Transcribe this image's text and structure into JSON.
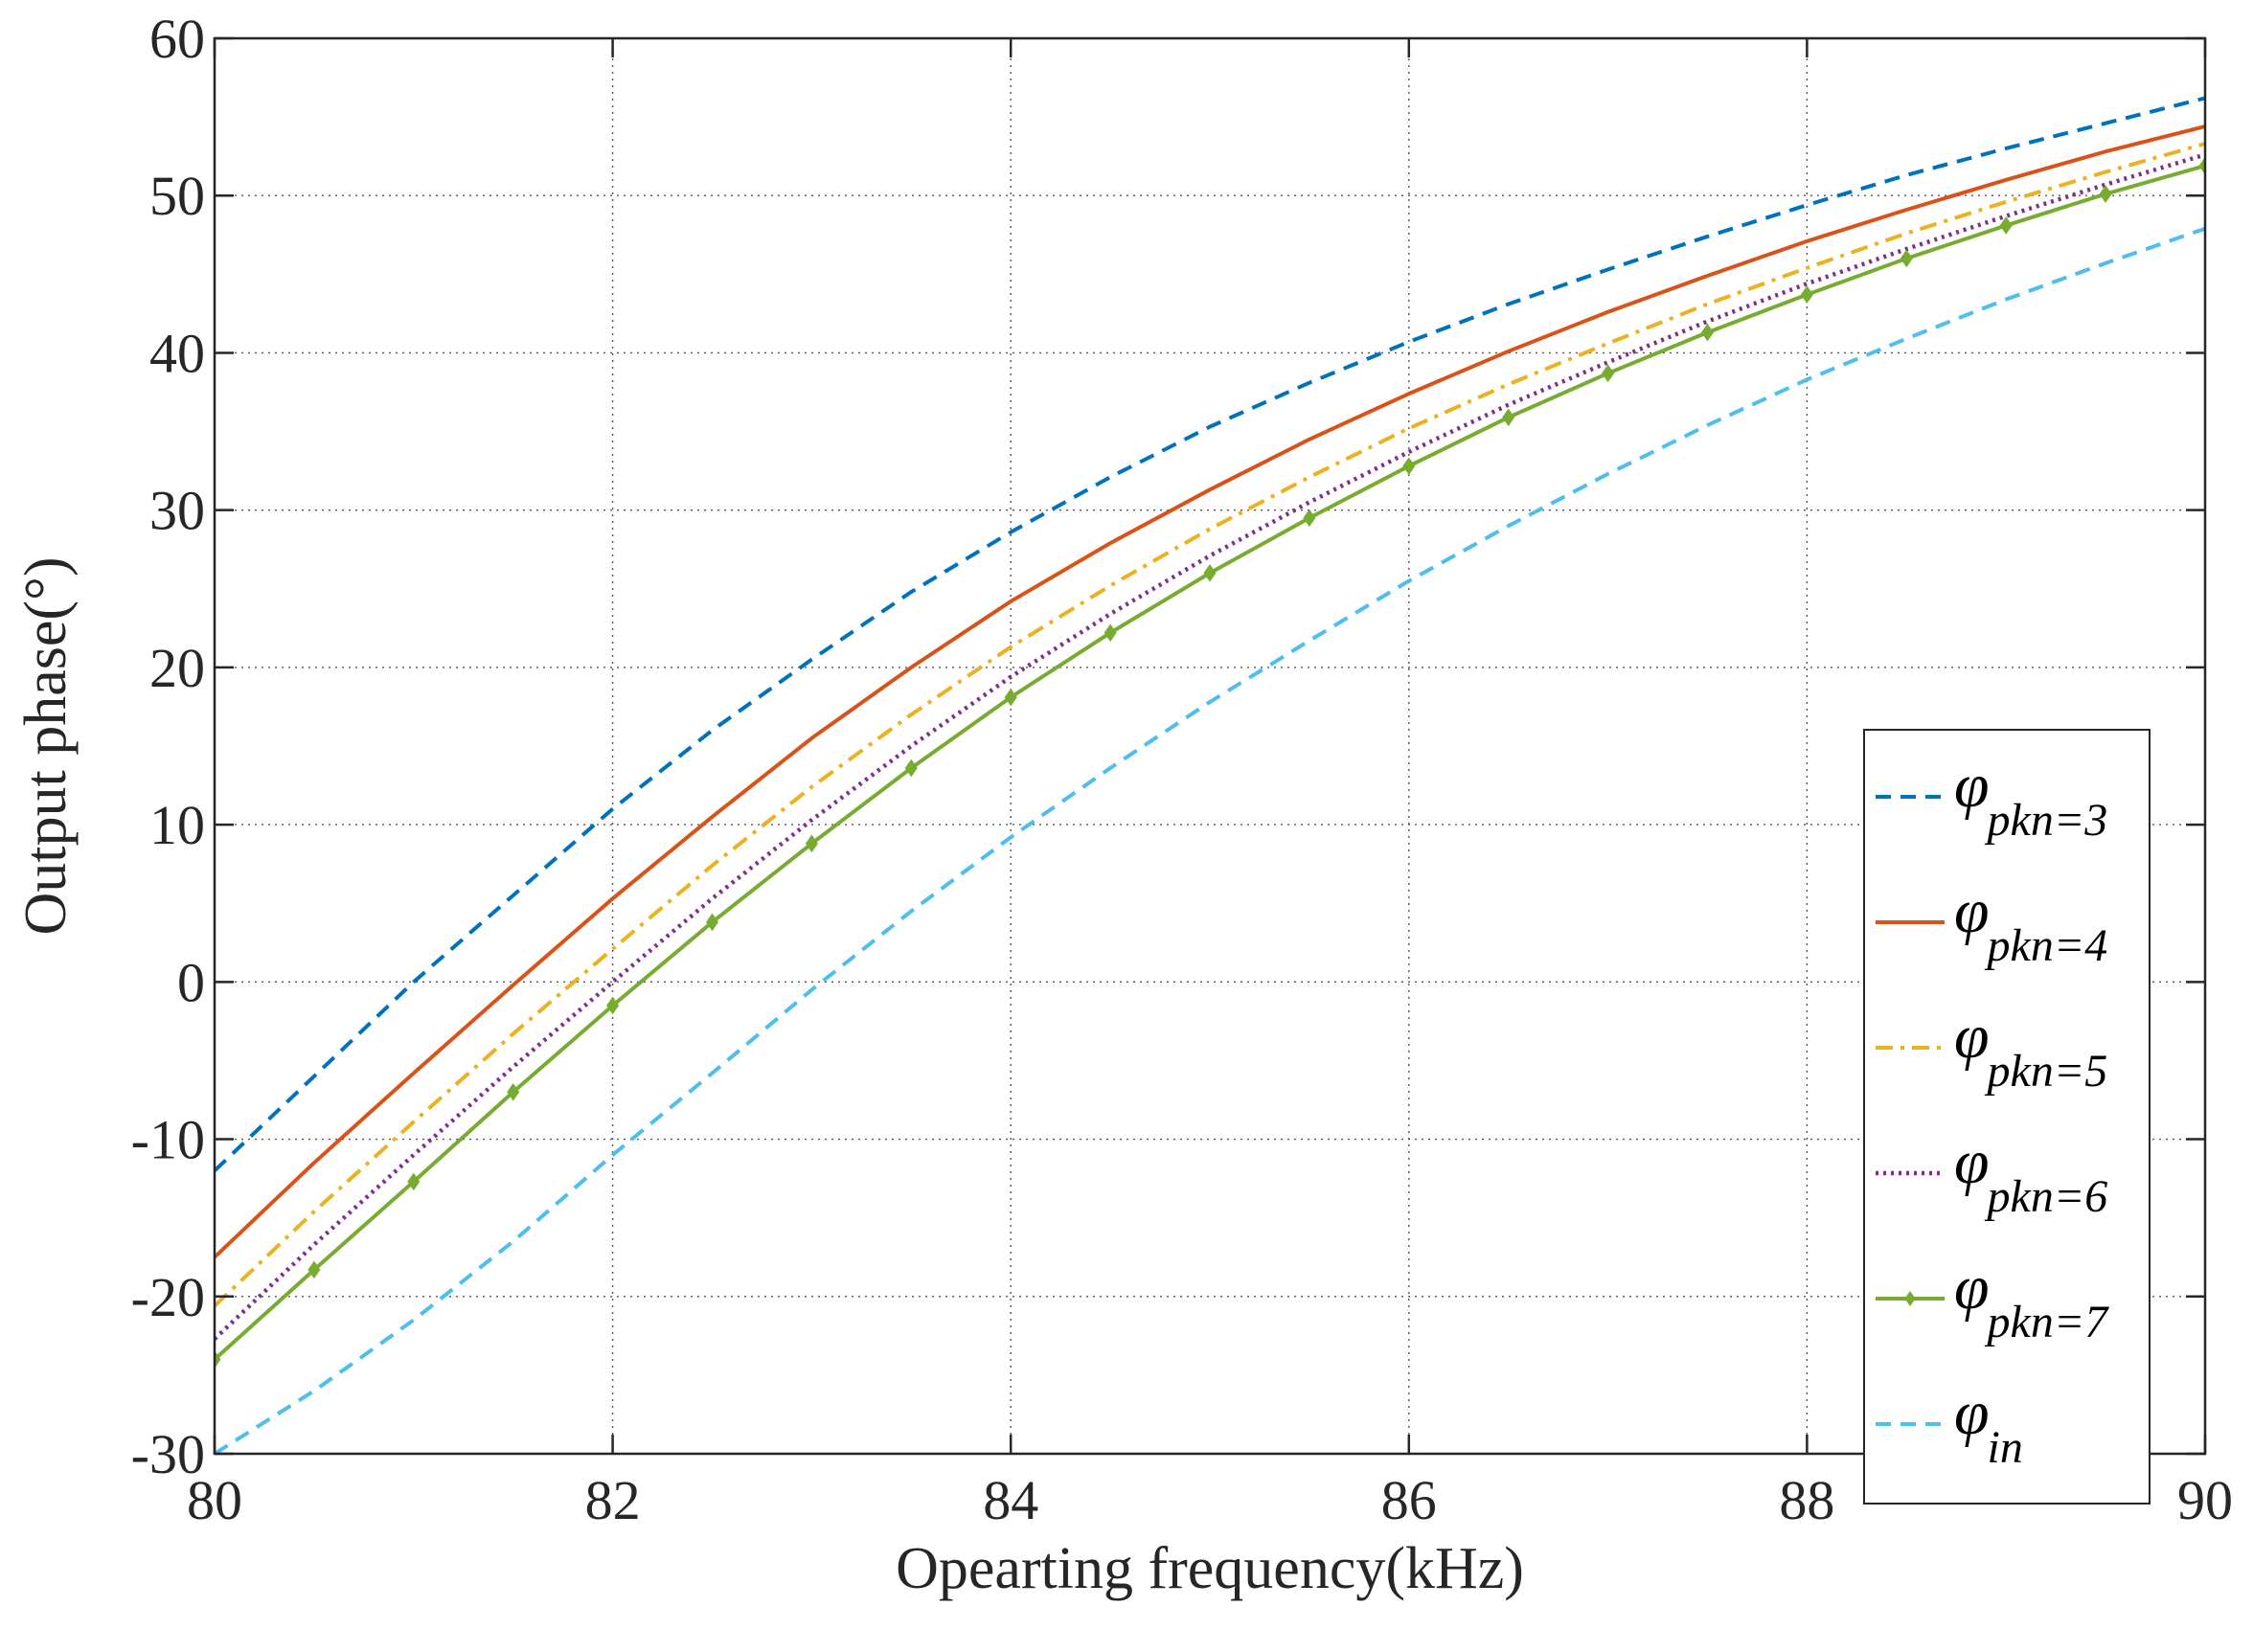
{
  "chart_data": {
    "type": "line",
    "title": "",
    "xlabel": "Opearting frequency(kHz)",
    "ylabel": "Output phase(°)",
    "xlim": [
      80,
      90
    ],
    "ylim": [
      -30,
      60
    ],
    "xticks": [
      80,
      82,
      84,
      86,
      88,
      90
    ],
    "yticks": [
      -30,
      -20,
      -10,
      0,
      10,
      20,
      30,
      40,
      50,
      60
    ],
    "xtick_labels": [
      "80",
      "82",
      "84",
      "86",
      "88",
      "90"
    ],
    "ytick_labels": [
      "-30",
      "-20",
      "-10",
      "0",
      "10",
      "20",
      "30",
      "40",
      "50",
      "60"
    ],
    "grid": true,
    "legend_position": "bottom-right",
    "x": [
      80,
      80.5,
      81,
      81.5,
      82,
      82.5,
      83,
      83.5,
      84,
      84.5,
      85,
      85.5,
      86,
      86.5,
      87,
      87.5,
      88,
      88.5,
      89,
      89.5,
      90
    ],
    "series": [
      {
        "name": "φpkn=3",
        "symbol": "φ",
        "subscript": "pkn=3",
        "color": "#0072BD",
        "style": "dashed",
        "marker": "none",
        "values": [
          -12,
          -6,
          0,
          5.5,
          11,
          16,
          20.5,
          24.8,
          28.6,
          32.1,
          35.3,
          38.1,
          40.7,
          43.1,
          45.3,
          47.4,
          49.4,
          51.3,
          53,
          54.6,
          56.2
        ]
      },
      {
        "name": "φpkn=4",
        "symbol": "φ",
        "subscript": "pkn=4",
        "color": "#D95319",
        "style": "solid",
        "marker": "none",
        "values": [
          -17.5,
          -11.5,
          -5.8,
          -0.2,
          5.3,
          10.5,
          15.5,
          20,
          24.2,
          27.9,
          31.3,
          34.5,
          37.4,
          40.1,
          42.6,
          44.9,
          47.1,
          49.1,
          51,
          52.8,
          54.4
        ]
      },
      {
        "name": "φpkn=5",
        "symbol": "φ",
        "subscript": "pkn=5",
        "color": "#EDB120",
        "style": "dashdot",
        "marker": "none",
        "values": [
          -20.6,
          -14.6,
          -8.9,
          -3.3,
          2.1,
          7.4,
          12.4,
          17,
          21.3,
          25.2,
          28.8,
          32.1,
          35.2,
          38,
          40.6,
          43.1,
          45.4,
          47.6,
          49.6,
          51.5,
          53.3
        ]
      },
      {
        "name": "φpkn=6",
        "symbol": "φ",
        "subscript": "pkn=6",
        "color": "#7E2F8E",
        "style": "dotted",
        "marker": "none",
        "values": [
          -22.7,
          -16.7,
          -11,
          -5.4,
          0,
          5.3,
          10.3,
          15,
          19.4,
          23.4,
          27.1,
          30.5,
          33.7,
          36.7,
          39.4,
          42,
          44.4,
          46.6,
          48.7,
          50.7,
          52.6
        ]
      },
      {
        "name": "φpkn=7",
        "symbol": "φ",
        "subscript": "pkn=7",
        "color": "#77AC30",
        "style": "solid",
        "marker": "diamond",
        "values": [
          -24,
          -18.3,
          -12.7,
          -7,
          -1.5,
          3.8,
          8.8,
          13.6,
          18.1,
          22.2,
          26,
          29.5,
          32.8,
          35.9,
          38.7,
          41.3,
          43.7,
          46,
          48.1,
          50.1,
          51.9
        ]
      },
      {
        "name": "φin",
        "symbol": "φ",
        "subscript": "in",
        "color": "#4DBEEE",
        "style": "dashed",
        "marker": "none",
        "values": [
          -30,
          -26,
          -21.5,
          -16.5,
          -11,
          -5.8,
          -0.5,
          4.5,
          9.2,
          13.6,
          17.8,
          21.7,
          25.5,
          29,
          32.3,
          35.4,
          38.3,
          40.9,
          43.4,
          45.7,
          47.9
        ]
      }
    ]
  }
}
